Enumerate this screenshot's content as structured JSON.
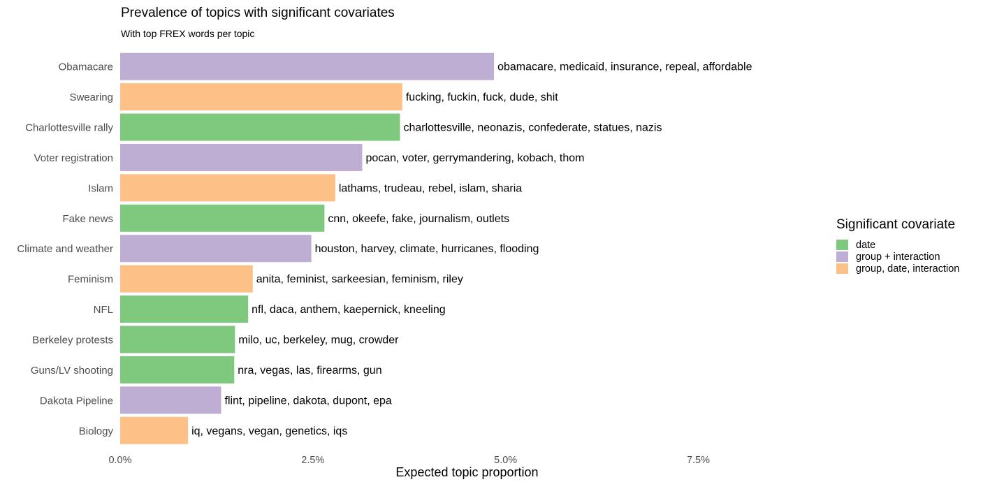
{
  "chart_data": {
    "type": "bar",
    "orientation": "horizontal",
    "title": "Prevalence of topics with significant covariates",
    "subtitle": "With top FREX words per topic",
    "xlabel": "Expected topic proportion",
    "ylabel": "",
    "xlim": [
      0,
      0.09
    ],
    "xticks": [
      0,
      0.025,
      0.05,
      0.075
    ],
    "xtick_labels": [
      "0.0%",
      "2.5%",
      "5.0%",
      "7.5%"
    ],
    "grid": false,
    "legend": {
      "title": "Significant covariate",
      "placement": "right",
      "entries": [
        {
          "label": "date",
          "color": "#7fc97f"
        },
        {
          "label": "group + interaction",
          "color": "#beaed4"
        },
        {
          "label": "group, date, interaction",
          "color": "#fdc086"
        }
      ]
    },
    "categories": [
      "Obamacare",
      "Swearing",
      "Charlottesville rally",
      "Voter registration",
      "Islam",
      "Fake news",
      "Climate and weather",
      "Feminism",
      "NFL",
      "Berkeley protests",
      "Guns/LV shooting",
      "Dakota Pipeline",
      "Biology"
    ],
    "values": [
      0.0485,
      0.0366,
      0.0363,
      0.0314,
      0.0279,
      0.0265,
      0.0248,
      0.0172,
      0.0166,
      0.0149,
      0.0148,
      0.0131,
      0.0088
    ],
    "groups": [
      "group + interaction",
      "group, date, interaction",
      "date",
      "group + interaction",
      "group, date, interaction",
      "date",
      "group + interaction",
      "group, date, interaction",
      "date",
      "date",
      "date",
      "group + interaction",
      "group, date, interaction"
    ],
    "annotations": [
      "obamacare, medicaid, insurance, repeal, affordable",
      "fucking, fuckin, fuck, dude, shit",
      "charlottesville, neonazis, confederate, statues, nazis",
      "pocan, voter, gerrymandering, kobach, thom",
      "lathams, trudeau, rebel, islam, sharia",
      "cnn, okeefe, fake, journalism, outlets",
      "houston, harvey, climate, hurricanes, flooding",
      "anita, feminist, sarkeesian, feminism, riley",
      "nfl, daca, anthem, kaepernick, kneeling",
      "milo, uc, berkeley, mug, crowder",
      "nra, vegas, las, firearms, gun",
      "flint, pipeline, dakota, dupont, epa",
      "iq, vegans, vegan, genetics, iqs"
    ]
  }
}
